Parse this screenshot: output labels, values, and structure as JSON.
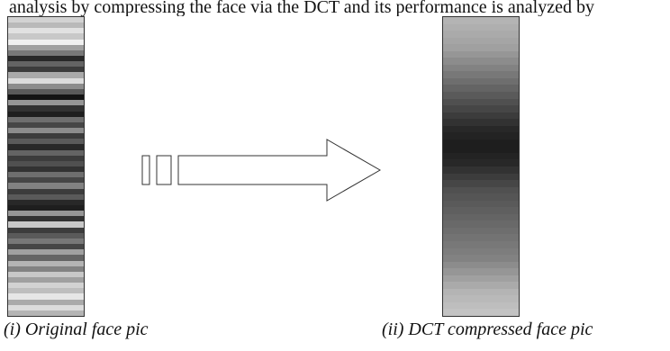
{
  "top_text": "analysis by compressing the face via the DCT and its performance is analyzed by",
  "captions": {
    "original": "(i) Original face pic",
    "compressed": "(ii) DCT compressed face pic"
  },
  "strips": {
    "original_levels": [
      210,
      185,
      225,
      200,
      240,
      160,
      120,
      40,
      100,
      60,
      170,
      220,
      140,
      90,
      20,
      150,
      50,
      30,
      110,
      70,
      140,
      60,
      90,
      40,
      100,
      60,
      80,
      50,
      110,
      70,
      130,
      60,
      90,
      40,
      30,
      150,
      50,
      200,
      60,
      90,
      120,
      70,
      160,
      100,
      180,
      130,
      200,
      160,
      210,
      190,
      230,
      170,
      220,
      180
    ],
    "compressed_levels": [
      180,
      175,
      170,
      165,
      160,
      150,
      140,
      130,
      120,
      110,
      100,
      90,
      80,
      70,
      60,
      50,
      40,
      35,
      30,
      30,
      35,
      40,
      50,
      60,
      70,
      80,
      85,
      90,
      95,
      100,
      105,
      110,
      115,
      120,
      125,
      130,
      140,
      150,
      160,
      170,
      180,
      185,
      190,
      195
    ]
  },
  "colors": {
    "outline": "#333333",
    "arrow_fill": "#ffffff"
  }
}
